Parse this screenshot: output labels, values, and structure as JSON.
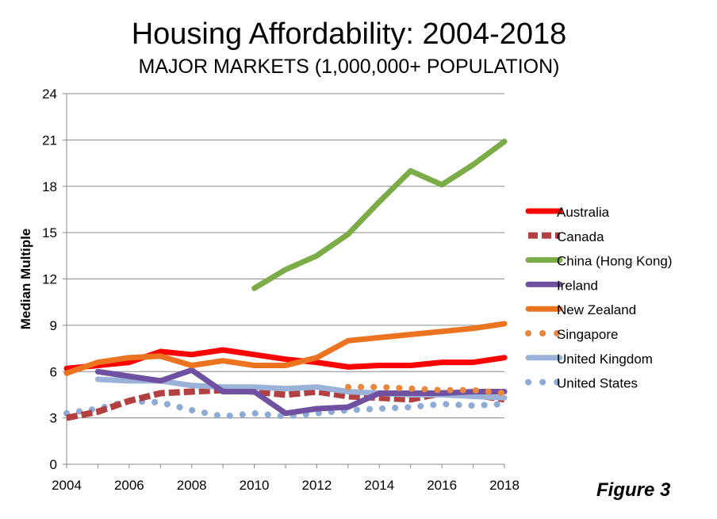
{
  "title": "Housing Affordability: 2004-2018",
  "subtitle": "MAJOR MARKETS (1,000,000+ POPULATION)",
  "figure_label": "Figure 3",
  "chart_data": {
    "type": "line",
    "title": "Housing Affordability: 2004-2018",
    "subtitle": "MAJOR MARKETS (1,000,000+ POPULATION)",
    "xlabel": "",
    "ylabel": "Median Multiple",
    "xlim": [
      2004,
      2018
    ],
    "ylim": [
      0,
      24
    ],
    "x_ticks": [
      2004,
      2006,
      2008,
      2010,
      2012,
      2014,
      2016,
      2018
    ],
    "y_ticks": [
      0,
      3,
      6,
      9,
      12,
      15,
      18,
      21,
      24
    ],
    "grid": true,
    "legend": "right",
    "series": [
      {
        "name": "Australia",
        "color": "#ff0000",
        "style": "solid",
        "x": [
          2004,
          2005,
          2006,
          2007,
          2008,
          2009,
          2010,
          2011,
          2012,
          2013,
          2014,
          2015,
          2016,
          2017,
          2018
        ],
        "y": [
          6.2,
          6.4,
          6.6,
          7.3,
          7.1,
          7.4,
          7.1,
          6.8,
          6.6,
          6.3,
          6.4,
          6.4,
          6.6,
          6.6,
          6.9
        ]
      },
      {
        "name": "Canada",
        "color": "#b24040",
        "style": "dashed",
        "x": [
          2004,
          2005,
          2006,
          2007,
          2008,
          2009,
          2010,
          2011,
          2012,
          2013,
          2014,
          2015,
          2016,
          2017,
          2018
        ],
        "y": [
          3.0,
          3.4,
          4.1,
          4.6,
          4.7,
          4.8,
          4.7,
          4.5,
          4.7,
          4.4,
          4.3,
          4.2,
          4.6,
          4.5,
          4.2
        ]
      },
      {
        "name": "China (Hong Kong)",
        "color": "#7cac48",
        "style": "solid",
        "x": [
          2010,
          2011,
          2012,
          2013,
          2014,
          2015,
          2016,
          2017,
          2018
        ],
        "y": [
          11.4,
          12.6,
          13.5,
          14.9,
          17.0,
          19.0,
          18.1,
          19.4,
          20.9
        ]
      },
      {
        "name": "Ireland",
        "color": "#7050a0",
        "style": "solid",
        "x": [
          2005,
          2006,
          2007,
          2008,
          2009,
          2010,
          2011,
          2012,
          2013,
          2014,
          2015,
          2016,
          2017,
          2018
        ],
        "y": [
          6.0,
          5.7,
          5.4,
          6.1,
          4.7,
          4.7,
          3.3,
          3.6,
          3.7,
          4.6,
          4.6,
          4.6,
          4.7,
          4.7
        ]
      },
      {
        "name": "New Zealand",
        "color": "#ec7420",
        "style": "solid",
        "x": [
          2004,
          2005,
          2006,
          2007,
          2008,
          2009,
          2010,
          2011,
          2012,
          2013,
          2014,
          2015,
          2016,
          2017,
          2018
        ],
        "y": [
          5.9,
          6.6,
          6.9,
          7.0,
          6.4,
          6.7,
          6.4,
          6.4,
          6.9,
          8.0,
          8.2,
          8.4,
          8.6,
          8.8,
          9.1
        ]
      },
      {
        "name": "Singapore",
        "color": "#e88840",
        "style": "dotted",
        "x": [
          2013,
          2014,
          2015,
          2016,
          2017,
          2018
        ],
        "y": [
          5.0,
          5.0,
          4.9,
          4.8,
          4.8,
          4.6
        ]
      },
      {
        "name": "United Kingdom",
        "color": "#9ab2d8",
        "style": "solid",
        "x": [
          2005,
          2006,
          2007,
          2008,
          2009,
          2010,
          2011,
          2012,
          2013,
          2014,
          2015,
          2016,
          2017,
          2018
        ],
        "y": [
          5.5,
          5.4,
          5.4,
          5.1,
          5.0,
          5.0,
          4.9,
          5.0,
          4.7,
          4.6,
          4.5,
          4.5,
          4.4,
          4.3
        ]
      },
      {
        "name": "United States",
        "color": "#8eaad6",
        "style": "dotted",
        "x": [
          2004,
          2005,
          2006,
          2007,
          2008,
          2009,
          2010,
          2011,
          2012,
          2013,
          2014,
          2015,
          2016,
          2017,
          2018
        ],
        "y": [
          3.3,
          3.6,
          4.1,
          4.0,
          3.5,
          3.1,
          3.3,
          3.1,
          3.3,
          3.5,
          3.6,
          3.7,
          3.9,
          3.8,
          3.9
        ]
      }
    ]
  }
}
